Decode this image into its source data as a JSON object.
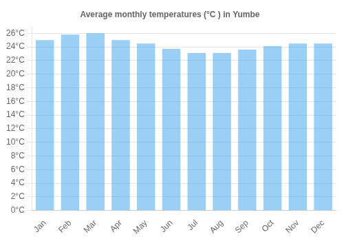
{
  "chart_data": {
    "type": "bar",
    "title": "Average monthly temperatures (°C ) in Yumbe",
    "categories": [
      "Jan",
      "Feb",
      "Mar",
      "Apr",
      "May",
      "Jun",
      "Jul",
      "Aug",
      "Sep",
      "Oct",
      "Nov",
      "Dec"
    ],
    "values": [
      25.0,
      25.8,
      26.0,
      25.0,
      24.5,
      23.7,
      23.1,
      23.1,
      23.6,
      24.1,
      24.5,
      24.5
    ],
    "ylim": [
      0,
      27
    ],
    "yticks": [
      {
        "value": 0,
        "label": "0°C"
      },
      {
        "value": 2,
        "label": "2°C"
      },
      {
        "value": 4,
        "label": "4°C"
      },
      {
        "value": 6,
        "label": "6°C"
      },
      {
        "value": 8,
        "label": "8°C"
      },
      {
        "value": 10,
        "label": "10°C"
      },
      {
        "value": 12,
        "label": "12°C"
      },
      {
        "value": 14,
        "label": "14°C"
      },
      {
        "value": 16,
        "label": "16°C"
      },
      {
        "value": 18,
        "label": "18°C"
      },
      {
        "value": 20,
        "label": "20°C"
      },
      {
        "value": 22,
        "label": "22°C"
      },
      {
        "value": 24,
        "label": "24°C"
      },
      {
        "value": 26,
        "label": "26°C"
      }
    ],
    "grid": true
  }
}
